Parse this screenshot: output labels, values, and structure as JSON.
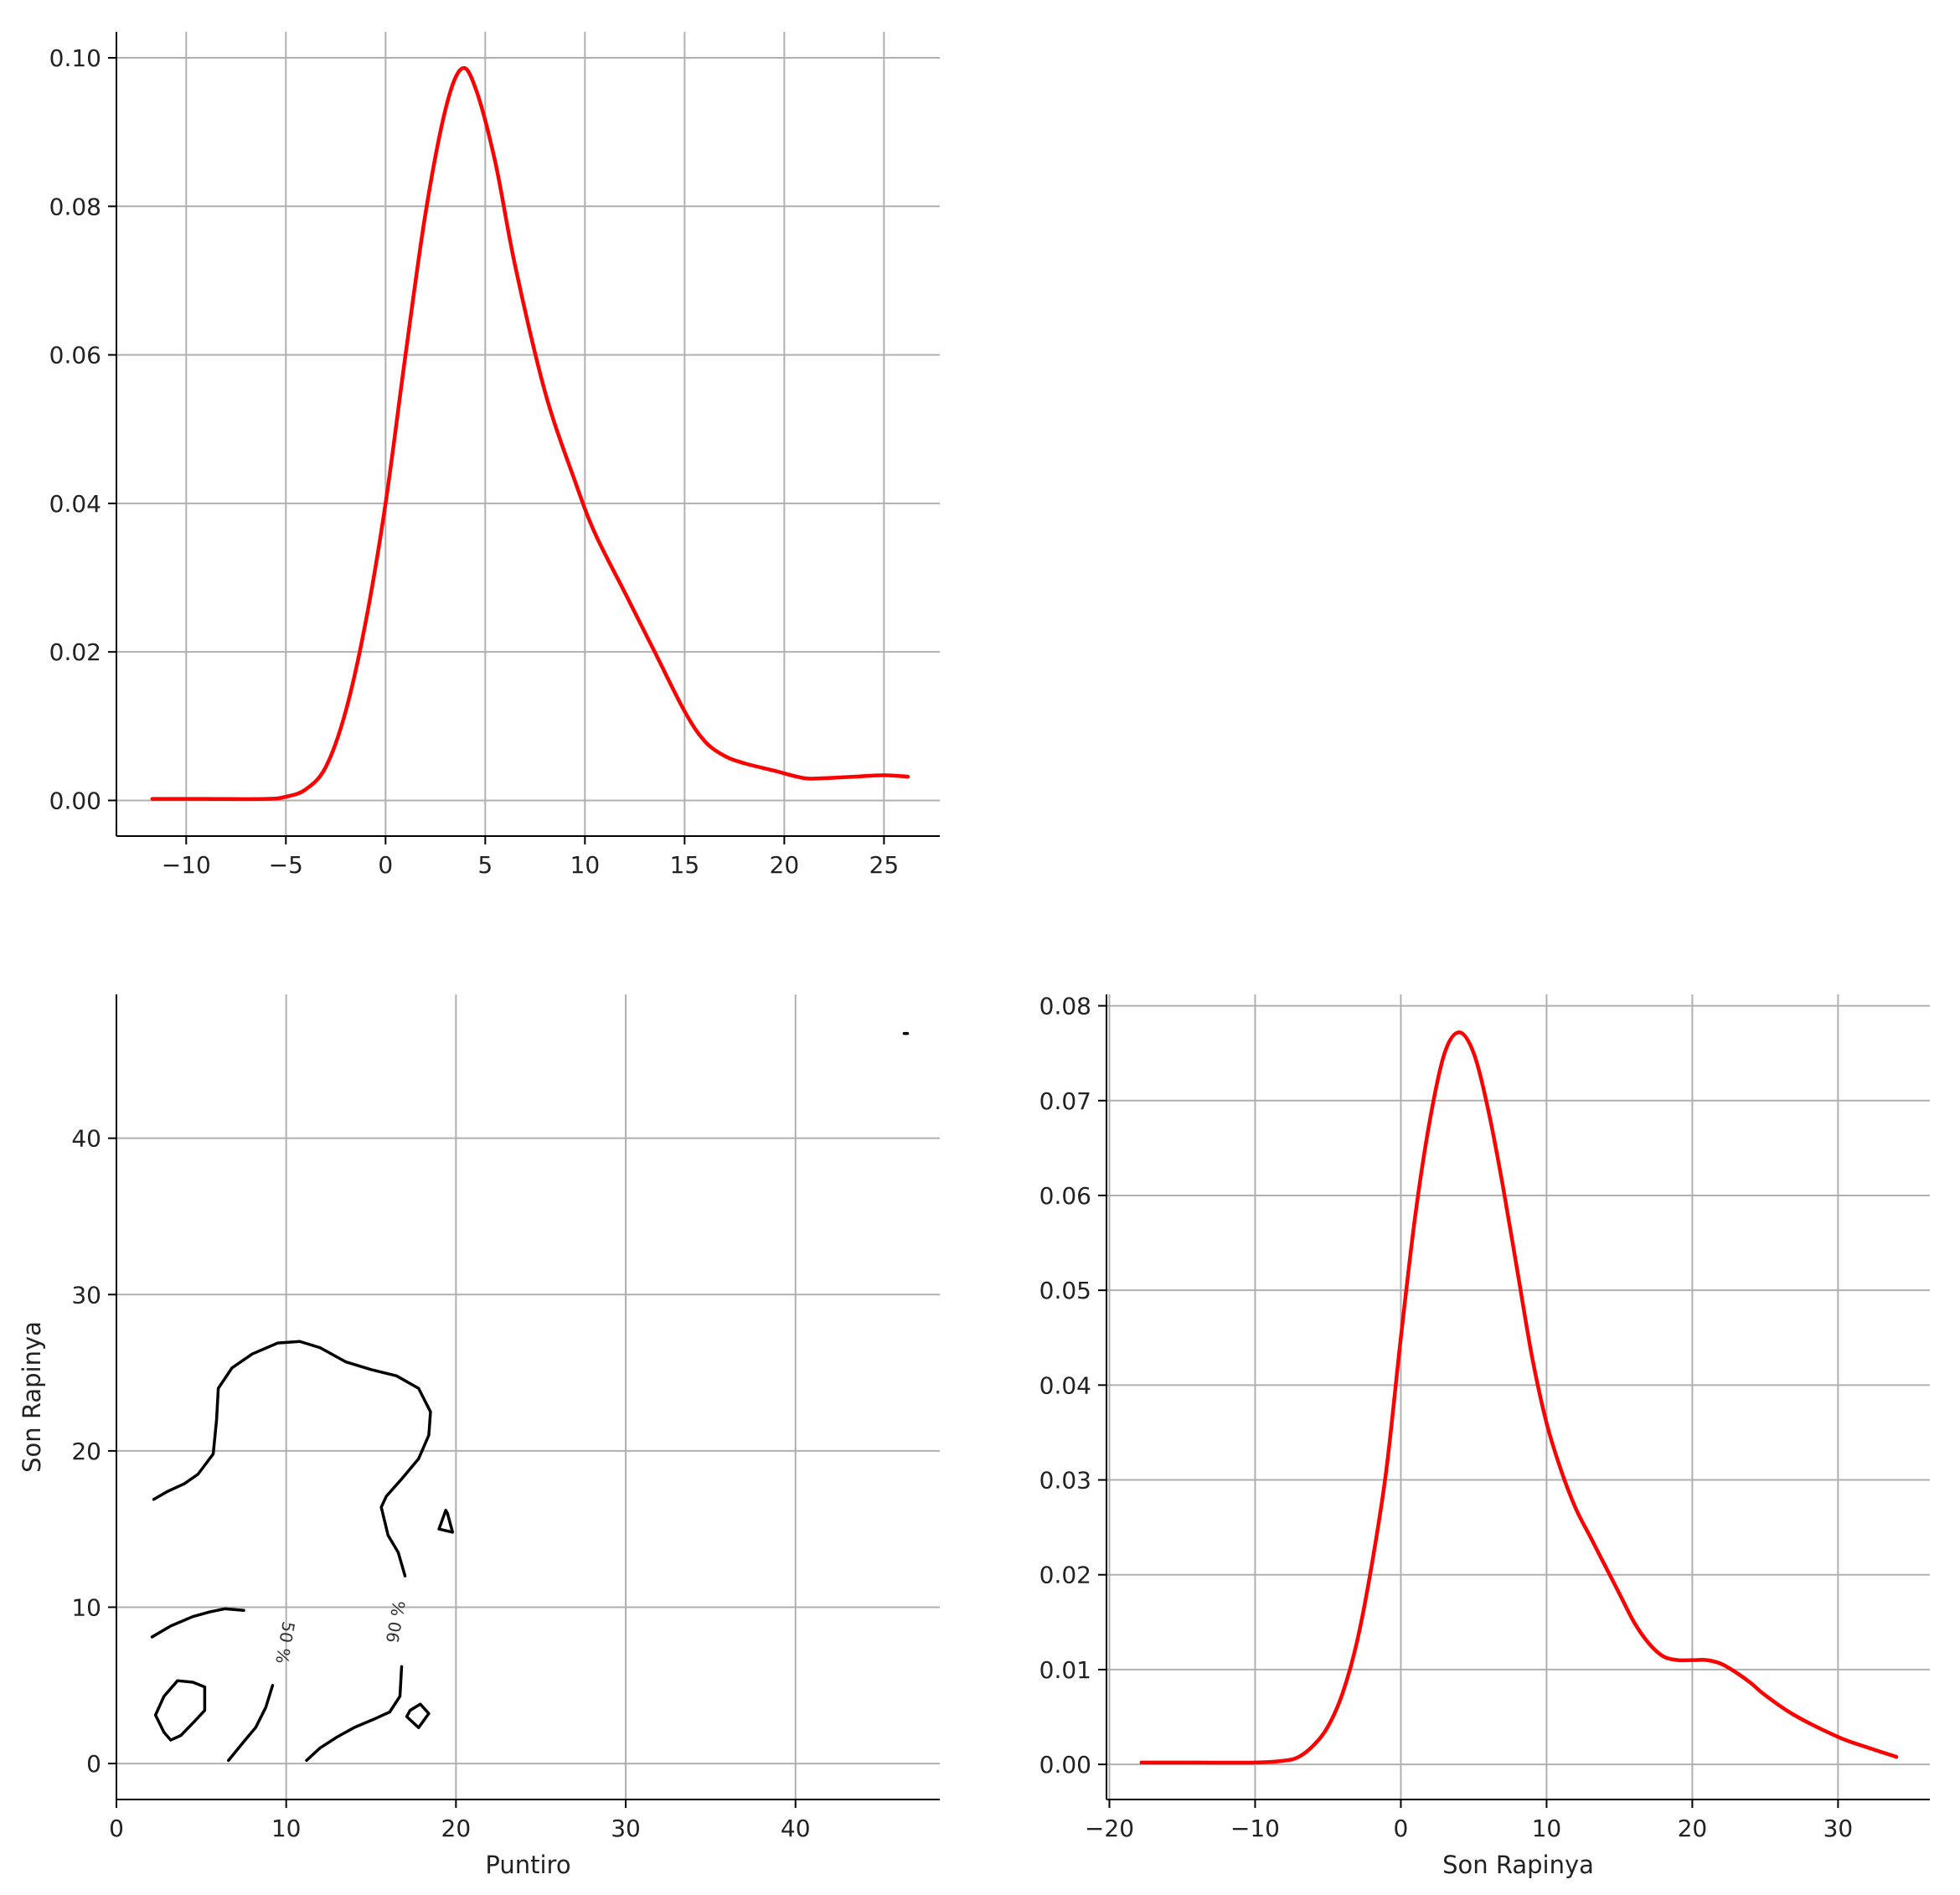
{
  "colors": {
    "kde_line": "#ff0000",
    "contour_line": "#000000",
    "grid": "#b0b0b0",
    "axis": "#000000"
  },
  "chart_data": [
    {
      "id": "puntiro-kde",
      "type": "line",
      "title": "",
      "xlabel": "",
      "ylabel": "",
      "xlim": [
        -13.5,
        27.8
      ],
      "ylim": [
        -0.0048,
        0.1035
      ],
      "xticks": [
        -10,
        -5,
        0,
        5,
        10,
        15,
        20,
        25
      ],
      "xtick_labels": [
        "−10",
        "−5",
        "0",
        "5",
        "10",
        "15",
        "20",
        "25"
      ],
      "yticks": [
        0,
        0.02,
        0.04,
        0.06,
        0.08,
        0.1
      ],
      "ytick_labels": [
        "0.00",
        "0.02",
        "0.04",
        "0.06",
        "0.08",
        "0.10"
      ],
      "grid": true,
      "series": [
        {
          "x": [
            -11.7,
            -9,
            -6,
            -5,
            -4,
            -3,
            -2,
            -1,
            0,
            1,
            2,
            3,
            3.8,
            4.5,
            5.5,
            6.5,
            8,
            9.5,
            10.5,
            12,
            13.5,
            15,
            16,
            17,
            18,
            19.5,
            21,
            22,
            23.5,
            25,
            26.2
          ],
          "y": [
            0.0002,
            0.0002,
            0.0002,
            0.0005,
            0.0015,
            0.0045,
            0.012,
            0.024,
            0.04,
            0.06,
            0.079,
            0.093,
            0.0985,
            0.096,
            0.086,
            0.072,
            0.055,
            0.043,
            0.036,
            0.028,
            0.02,
            0.012,
            0.008,
            0.006,
            0.005,
            0.004,
            0.003,
            0.003,
            0.0032,
            0.0034,
            0.0032
          ]
        }
      ]
    },
    {
      "id": "joint-kde-contour",
      "type": "contour",
      "title": "",
      "xlabel": "Puntiro",
      "ylabel": "Son Rapinya",
      "xlim": [
        0,
        48.5
      ],
      "ylim": [
        -2.3,
        49.2
      ],
      "xticks": [
        0,
        10,
        20,
        30,
        40
      ],
      "xtick_labels": [
        "0",
        "10",
        "20",
        "30",
        "40"
      ],
      "yticks": [
        0,
        10,
        20,
        30,
        40
      ],
      "ytick_labels": [
        "0",
        "10",
        "20",
        "30",
        "40"
      ],
      "grid": true,
      "contour_labels": [
        {
          "text": "50 %",
          "x": 9.6,
          "y": 7.8,
          "rotation": 100
        },
        {
          "text": "90 %",
          "x": 16.8,
          "y": 9.0,
          "rotation": -80
        }
      ],
      "series": [
        {
          "level": "90 %",
          "points": [
            [
              2.2,
              16.9
            ],
            [
              3.0,
              17.4
            ],
            [
              4.0,
              17.9
            ],
            [
              4.8,
              18.5
            ],
            [
              5.7,
              19.8
            ],
            [
              5.9,
              22.0
            ],
            [
              6.0,
              24.0
            ],
            [
              6.8,
              25.3
            ],
            [
              8.0,
              26.2
            ],
            [
              9.5,
              26.9
            ],
            [
              10.8,
              27.0
            ],
            [
              12.0,
              26.6
            ],
            [
              13.5,
              25.7
            ],
            [
              15.0,
              25.2
            ],
            [
              16.5,
              24.8
            ],
            [
              17.8,
              24.0
            ],
            [
              18.5,
              22.5
            ],
            [
              18.4,
              21.0
            ],
            [
              17.8,
              19.5
            ],
            [
              16.8,
              18.2
            ],
            [
              15.9,
              17.1
            ],
            [
              15.6,
              16.4
            ],
            [
              16.0,
              14.6
            ],
            [
              16.6,
              13.5
            ],
            [
              17.0,
              12.0
            ]
          ]
        },
        {
          "level": "90 %",
          "closed": true,
          "points": [
            [
              19.4,
              16.2
            ],
            [
              19.0,
              15.0
            ],
            [
              19.8,
              14.8
            ],
            [
              19.5,
              16.0
            ]
          ]
        },
        {
          "level": "50 %",
          "points": [
            [
              2.1,
              8.1
            ],
            [
              3.2,
              8.8
            ],
            [
              4.5,
              9.4
            ],
            [
              5.5,
              9.7
            ],
            [
              6.4,
              9.9
            ],
            [
              7.5,
              9.8
            ]
          ]
        },
        {
          "level": "90 %",
          "points": [
            [
              6.6,
              0.2
            ],
            [
              7.5,
              1.4
            ],
            [
              8.2,
              2.3
            ],
            [
              8.8,
              3.6
            ],
            [
              9.2,
              5.0
            ]
          ]
        },
        {
          "level": "50 %",
          "closed": true,
          "points": [
            [
              3.6,
              5.3
            ],
            [
              4.5,
              5.2
            ],
            [
              5.2,
              4.9
            ],
            [
              5.2,
              3.4
            ],
            [
              4.6,
              2.7
            ],
            [
              3.8,
              1.8
            ],
            [
              3.2,
              1.5
            ],
            [
              2.8,
              2.0
            ],
            [
              2.3,
              3.1
            ],
            [
              2.8,
              4.3
            ]
          ]
        },
        {
          "level": "90 %",
          "points": [
            [
              11.2,
              0.2
            ],
            [
              12.0,
              1.0
            ],
            [
              13.0,
              1.7
            ],
            [
              14.0,
              2.3
            ],
            [
              15.3,
              2.9
            ],
            [
              16.1,
              3.3
            ],
            [
              16.7,
              4.3
            ],
            [
              16.8,
              6.2
            ]
          ]
        },
        {
          "level": "90 %",
          "closed": true,
          "points": [
            [
              17.3,
              3.4
            ],
            [
              17.9,
              3.8
            ],
            [
              18.4,
              3.2
            ],
            [
              17.8,
              2.3
            ],
            [
              17.1,
              3.0
            ]
          ]
        },
        {
          "level": "outlier",
          "points": [
            [
              46.4,
              46.7
            ],
            [
              46.6,
              46.7
            ]
          ]
        }
      ]
    },
    {
      "id": "son-rapinya-kde",
      "type": "line",
      "title": "",
      "xlabel": "Son Rapinya",
      "ylabel": "",
      "xlim": [
        -20.2,
        36.3
      ],
      "ylim": [
        -0.0037,
        0.0812
      ],
      "xticks": [
        -20,
        -10,
        0,
        10,
        20,
        30
      ],
      "xtick_labels": [
        "−20",
        "−10",
        "0",
        "10",
        "20",
        "30"
      ],
      "yticks": [
        0,
        0.01,
        0.02,
        0.03,
        0.04,
        0.05,
        0.06,
        0.07,
        0.08
      ],
      "ytick_labels": [
        "0.00",
        "0.01",
        "0.02",
        "0.03",
        "0.04",
        "0.05",
        "0.06",
        "0.07",
        "0.08"
      ],
      "grid": true,
      "series": [
        {
          "x": [
            -17.8,
            -14,
            -10,
            -8,
            -7,
            -6,
            -5,
            -4,
            -3,
            -2,
            -1,
            0,
            1,
            2,
            3,
            4,
            5,
            6,
            7,
            8,
            9,
            10,
            11,
            12,
            13,
            14,
            15,
            16,
            17,
            18,
            19,
            20,
            21,
            22,
            23,
            24,
            25,
            27,
            30,
            32,
            34
          ],
          "y": [
            0.0002,
            0.0002,
            0.0002,
            0.0004,
            0.0008,
            0.002,
            0.004,
            0.0075,
            0.013,
            0.021,
            0.031,
            0.045,
            0.058,
            0.068,
            0.075,
            0.0772,
            0.075,
            0.069,
            0.061,
            0.052,
            0.043,
            0.036,
            0.031,
            0.027,
            0.024,
            0.021,
            0.018,
            0.015,
            0.0128,
            0.0114,
            0.011,
            0.011,
            0.011,
            0.0106,
            0.0097,
            0.0086,
            0.0073,
            0.0052,
            0.0029,
            0.0018,
            0.0008
          ]
        }
      ]
    }
  ]
}
